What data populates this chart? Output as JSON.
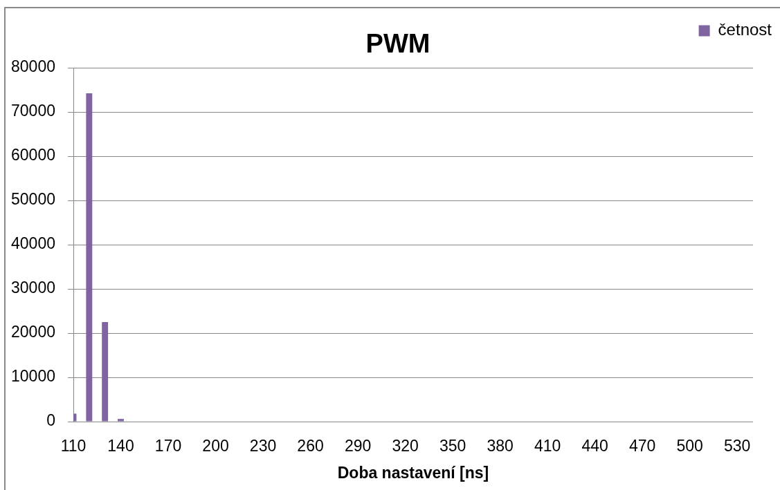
{
  "chart_data": {
    "type": "bar",
    "title": "PWM",
    "xlabel": "Doba nastavení [ns]",
    "categories": [
      "110",
      null,
      null,
      "140",
      null,
      null,
      "170",
      null,
      null,
      "200",
      null,
      null,
      "230",
      null,
      null,
      "260",
      null,
      null,
      "290",
      null,
      null,
      "320",
      null,
      null,
      "350",
      null,
      null,
      "380",
      null,
      null,
      "410",
      null,
      null,
      "440",
      null,
      null,
      "470",
      null,
      null,
      "500",
      null,
      null,
      "530",
      null
    ],
    "series": [
      {
        "name": "četnost",
        "color": "#8064a2",
        "values": [
          1800,
          74200,
          22500,
          600,
          0,
          0,
          0,
          0,
          0,
          0,
          0,
          0,
          0,
          0,
          0,
          0,
          0,
          0,
          0,
          0,
          0,
          0,
          0,
          0,
          0,
          0,
          0,
          0,
          0,
          0,
          0,
          0,
          0,
          0,
          0,
          0,
          0,
          0,
          0,
          0,
          0,
          0,
          0,
          0
        ]
      }
    ],
    "ylim": [
      0,
      80000
    ],
    "yticks": [
      0,
      10000,
      20000,
      30000,
      40000,
      50000,
      60000,
      70000,
      80000
    ],
    "grid": "y",
    "legend": "top right"
  }
}
